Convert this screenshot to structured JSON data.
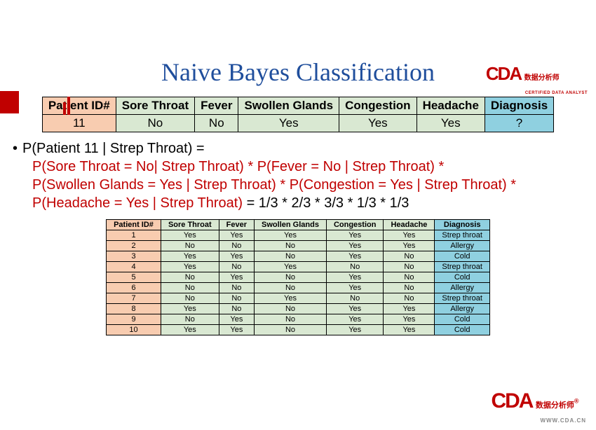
{
  "brand": {
    "name": "CDA",
    "tagline_cn": "数据分析师",
    "tagline_en": "CERTIFIED DATA ANALYST",
    "url": "WWW.CDA.CN"
  },
  "title": {
    "text": "Naive Bayes Classification",
    "color": "#1f4e9c"
  },
  "patientTable": {
    "headers": [
      "Patient ID#",
      "Sore Throat",
      "Fever",
      "Swollen Glands",
      "Congestion",
      "Headache",
      "Diagnosis"
    ],
    "headerColors": [
      "#f8ccb0",
      "#d9e8d2",
      "#d9e8d2",
      "#d9e8d2",
      "#d9e8d2",
      "#d9e8d2",
      "#8fd0e0"
    ],
    "row": [
      "11",
      "No",
      "No",
      "Yes",
      "Yes",
      "Yes",
      "?"
    ],
    "rowColors": [
      "#f8ccb0",
      "#d9e8d2",
      "#d9e8d2",
      "#d9e8d2",
      "#d9e8d2",
      "#d9e8d2",
      "#8fd0e0"
    ]
  },
  "formula": {
    "line1_black": "P(Patient 11 | Strep Throat) = ",
    "line2_red": "P(Sore Throat = No| Strep Throat) * P(Fever = No | Strep Throat) *",
    "line3_red": "P(Swollen Glands = Yes | Strep Throat) * P(Congestion = Yes | Strep Throat) *",
    "line4_red": "P(Headache = Yes | Strep Throat)",
    "line4_black": " = 1/3 * 2/3 * 3/3 * 1/3 * 1/3",
    "redColor": "#c00000"
  },
  "dataTable": {
    "headers": [
      "Patient ID#",
      "Sore Throat",
      "Fever",
      "Swollen Glands",
      "Congestion",
      "Headache",
      "Diagnosis"
    ],
    "headerColors": [
      "#f8ccb0",
      "#d9e8d2",
      "#d9e8d2",
      "#d9e8d2",
      "#d9e8d2",
      "#d9e8d2",
      "#8fd0e0"
    ],
    "rowIdColor": "#f8ccb0",
    "rowDataColor": "#d9e8d2",
    "rowDiagColor": "#8fd0e0",
    "rows": [
      [
        "1",
        "Yes",
        "Yes",
        "Yes",
        "Yes",
        "Yes",
        "Strep throat"
      ],
      [
        "2",
        "No",
        "No",
        "No",
        "Yes",
        "Yes",
        "Allergy"
      ],
      [
        "3",
        "Yes",
        "Yes",
        "No",
        "Yes",
        "No",
        "Cold"
      ],
      [
        "4",
        "Yes",
        "No",
        "Yes",
        "No",
        "No",
        "Strep throat"
      ],
      [
        "5",
        "No",
        "Yes",
        "No",
        "Yes",
        "No",
        "Cold"
      ],
      [
        "6",
        "No",
        "No",
        "No",
        "Yes",
        "No",
        "Allergy"
      ],
      [
        "7",
        "No",
        "No",
        "Yes",
        "No",
        "No",
        "Strep throat"
      ],
      [
        "8",
        "Yes",
        "No",
        "No",
        "Yes",
        "Yes",
        "Allergy"
      ],
      [
        "9",
        "No",
        "Yes",
        "No",
        "Yes",
        "Yes",
        "Cold"
      ],
      [
        "10",
        "Yes",
        "Yes",
        "No",
        "Yes",
        "Yes",
        "Cold"
      ]
    ]
  }
}
